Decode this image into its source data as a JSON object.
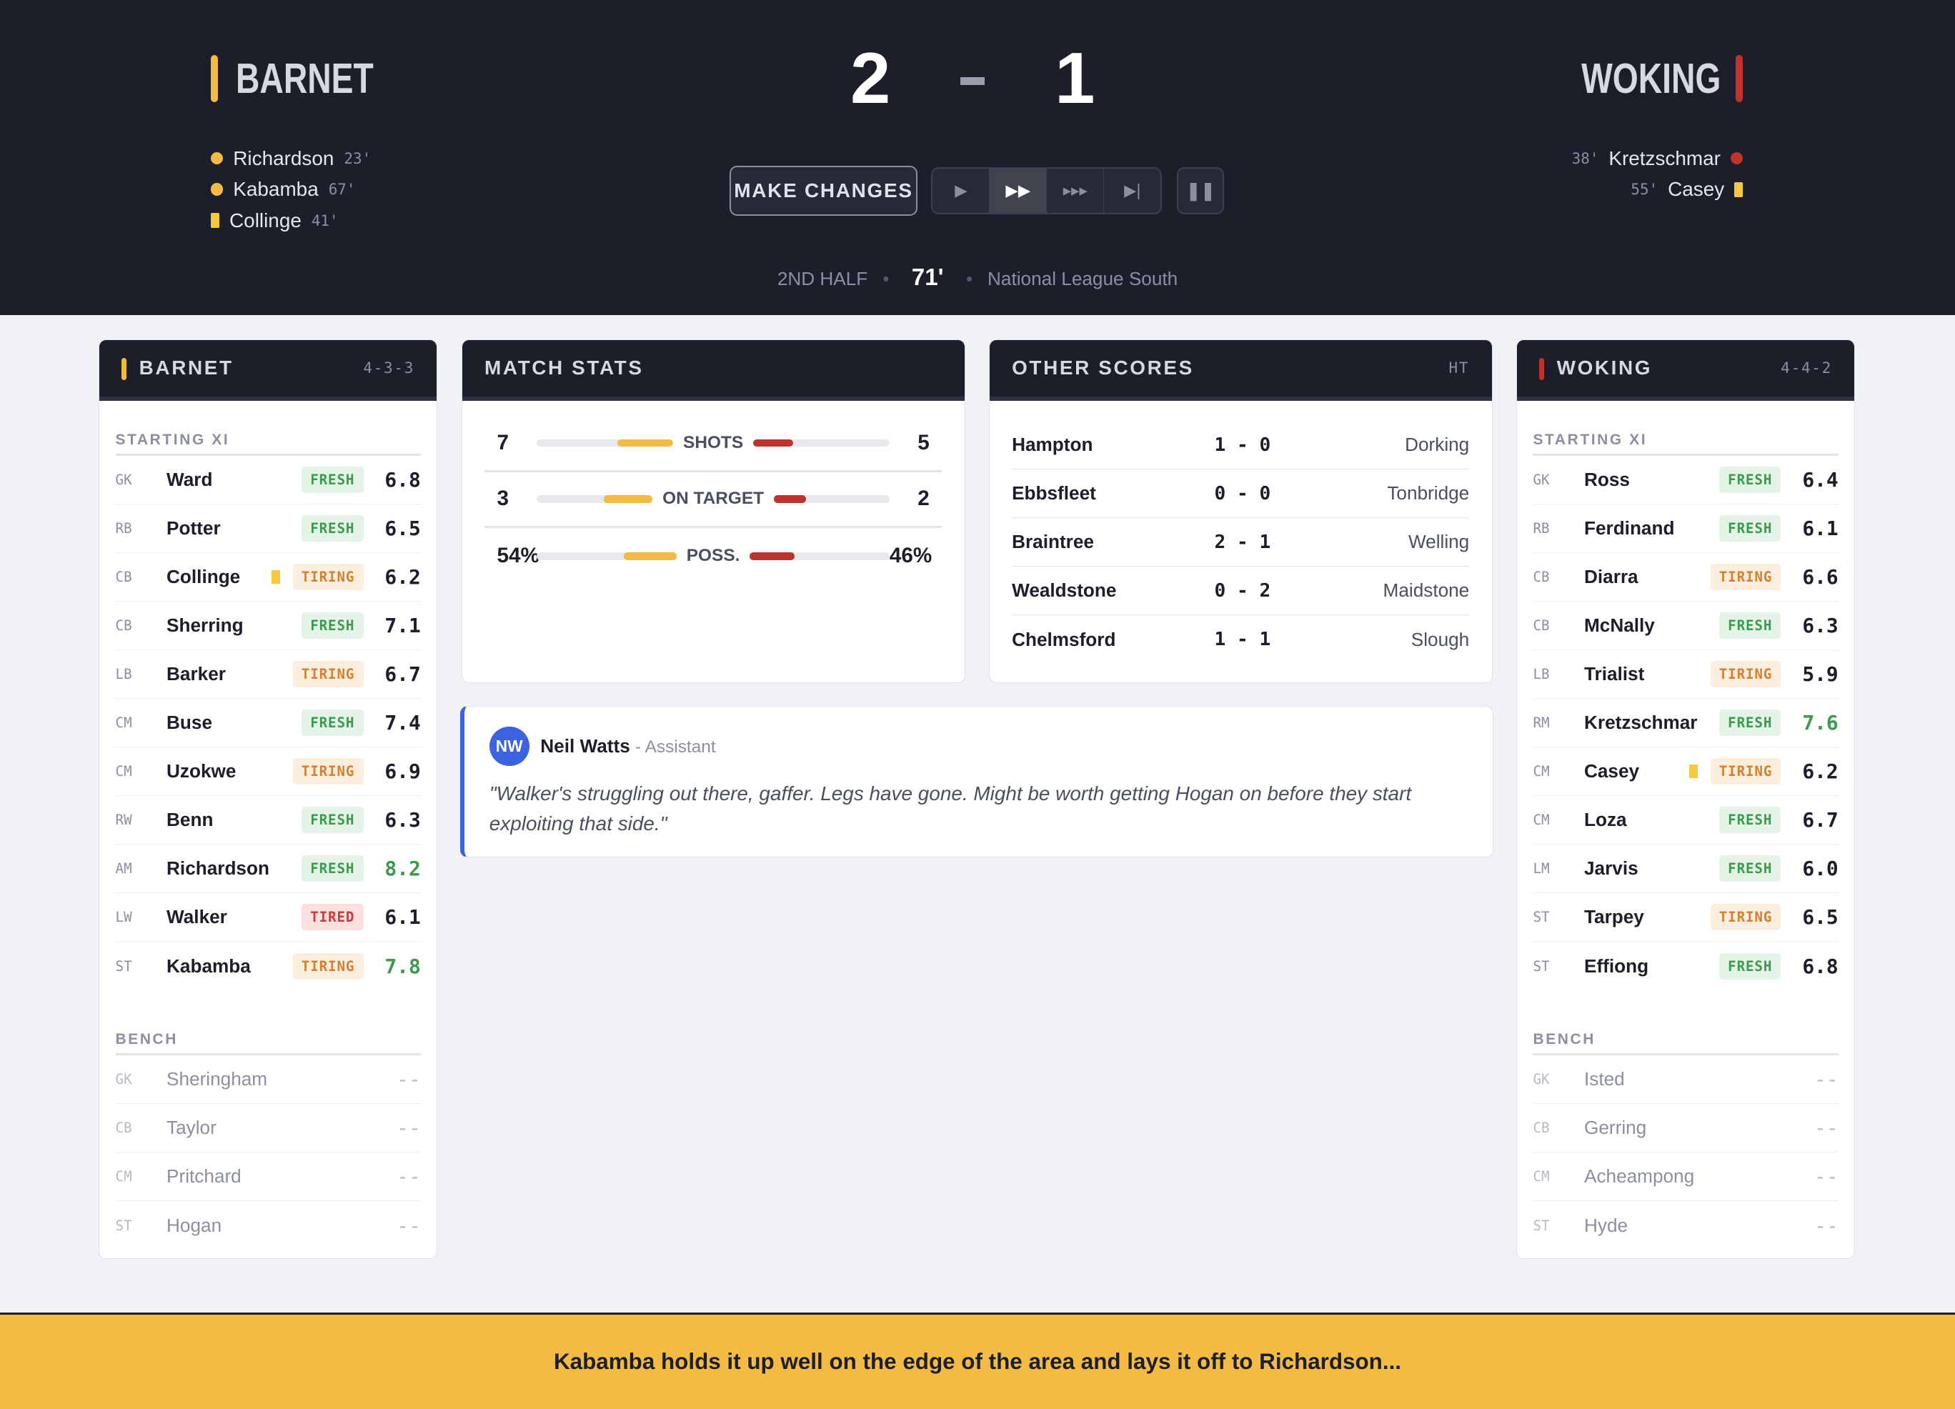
{
  "colors": {
    "home": "#f4bb44",
    "away": "#c0332b",
    "yellow_card": "#f4ca3c",
    "assistant": "#3b63e0"
  },
  "header": {
    "home": {
      "name": "BARNET",
      "score": "2",
      "events": [
        {
          "player": "Richardson",
          "minute": "23'",
          "type": "goal"
        },
        {
          "player": "Kabamba",
          "minute": "67'",
          "type": "goal"
        },
        {
          "player": "Collinge",
          "minute": "41'",
          "type": "yellow-card"
        }
      ]
    },
    "away": {
      "name": "WOKING",
      "score": "1",
      "events": [
        {
          "player": "Kretzschmar",
          "minute": "38'",
          "type": "goal"
        },
        {
          "player": "Casey",
          "minute": "55'",
          "type": "yellow-card"
        }
      ]
    },
    "make_changes": "MAKE CHANGES",
    "controls": [
      {
        "icon": "play-icon",
        "glyph": "▶"
      },
      {
        "icon": "fast-forward-icon",
        "glyph": "▶▶",
        "active": true
      },
      {
        "icon": "faster-forward-icon",
        "glyph": "▸▸▸"
      },
      {
        "icon": "skip-to-end-icon",
        "glyph": "▶|"
      }
    ],
    "pause_glyph": "❚❚",
    "period": "2ND HALF",
    "minute": "71'",
    "competition": "National League South"
  },
  "home_lineup": {
    "title": "BARNET",
    "formation": "4-3-3",
    "starting_label": "STARTING XI",
    "bench_label": "BENCH",
    "starting": [
      [
        "GK",
        "Ward",
        "FRESH",
        "6.8"
      ],
      [
        "RB",
        "Potter",
        "FRESH",
        "6.5"
      ],
      [
        "CB",
        "Collinge",
        "TIRING",
        "6.2",
        1
      ],
      [
        "CB",
        "Sherring",
        "FRESH",
        "7.1"
      ],
      [
        "LB",
        "Barker",
        "TIRING",
        "6.7"
      ],
      [
        "CM",
        "Buse",
        "FRESH",
        "7.4"
      ],
      [
        "CM",
        "Uzokwe",
        "TIRING",
        "6.9"
      ],
      [
        "RW",
        "Benn",
        "FRESH",
        "6.3"
      ],
      [
        "AM",
        "Richardson",
        "FRESH",
        "8.2"
      ],
      [
        "LW",
        "Walker",
        "TIRED",
        "6.1"
      ],
      [
        "ST",
        "Kabamba",
        "TIRING",
        "7.8"
      ]
    ],
    "bench": [
      [
        "GK",
        "Sheringham",
        "--"
      ],
      [
        "CB",
        "Taylor",
        "--"
      ],
      [
        "CM",
        "Pritchard",
        "--"
      ],
      [
        "ST",
        "Hogan",
        "--"
      ]
    ]
  },
  "away_lineup": {
    "title": "WOKING",
    "formation": "4-4-2",
    "starting_label": "STARTING XI",
    "bench_label": "BENCH",
    "starting": [
      [
        "GK",
        "Ross",
        "FRESH",
        "6.4"
      ],
      [
        "RB",
        "Ferdinand",
        "FRESH",
        "6.1"
      ],
      [
        "CB",
        "Diarra",
        "TIRING",
        "6.6"
      ],
      [
        "CB",
        "McNally",
        "FRESH",
        "6.3"
      ],
      [
        "LB",
        "Trialist",
        "TIRING",
        "5.9"
      ],
      [
        "RM",
        "Kretzschmar",
        "FRESH",
        "7.6"
      ],
      [
        "CM",
        "Casey",
        "TIRING",
        "6.2",
        1
      ],
      [
        "CM",
        "Loza",
        "FRESH",
        "6.7"
      ],
      [
        "LM",
        "Jarvis",
        "FRESH",
        "6.0"
      ],
      [
        "ST",
        "Tarpey",
        "TIRING",
        "6.5"
      ],
      [
        "ST",
        "Effiong",
        "FRESH",
        "6.8"
      ]
    ],
    "bench": [
      [
        "GK",
        "Isted",
        "--"
      ],
      [
        "CB",
        "Gerring",
        "--"
      ],
      [
        "CM",
        "Acheampong",
        "--"
      ],
      [
        "ST",
        "Hyde",
        "--"
      ]
    ]
  },
  "match_stats": {
    "title": "MATCH STATS",
    "rows": [
      {
        "label": "SHOTS",
        "home": "7",
        "away": "5",
        "home_value": 7,
        "away_value": 5
      },
      {
        "label": "ON TARGET",
        "home": "3",
        "away": "2",
        "home_value": 3,
        "away_value": 2
      },
      {
        "label": "POSS.",
        "home": "54%",
        "away": "46%",
        "home_value": 54,
        "away_value": 46
      }
    ]
  },
  "other_scores": {
    "title": "OTHER SCORES",
    "status": "HT",
    "rows": [
      [
        "Hampton",
        "1 - 0",
        "Dorking"
      ],
      [
        "Ebbsfleet",
        "0 - 0",
        "Tonbridge"
      ],
      [
        "Braintree",
        "2 - 1",
        "Welling"
      ],
      [
        "Wealdstone",
        "0 - 2",
        "Maidstone"
      ],
      [
        "Chelmsford",
        "1 - 1",
        "Slough"
      ]
    ]
  },
  "assistant": {
    "initials": "NW",
    "name": "Neil Watts",
    "role": "- Assistant",
    "quote": "\"Walker's struggling out there, gaffer. Legs have gone. Might be worth getting Hogan on before they start exploiting that side.\""
  },
  "commentary": "Kabamba holds it up well on the edge of the area and lays it off to Richardson..."
}
